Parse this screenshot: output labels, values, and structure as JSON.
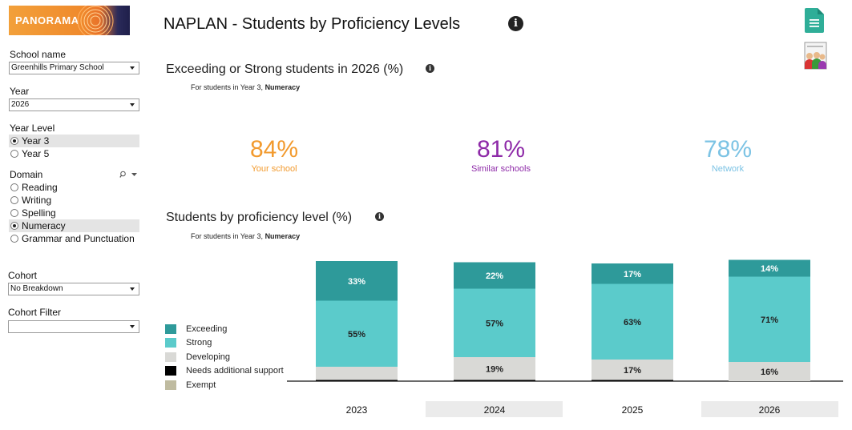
{
  "app": {
    "logo_text": "PANORAMA",
    "page_title": "NAPLAN - Students by Proficiency Levels"
  },
  "sidebar": {
    "school_label": "School name",
    "school_value": "Greenhills Primary School",
    "year_label": "Year",
    "year_value": "2026",
    "year_level_label": "Year Level",
    "year_levels": [
      {
        "label": "Year 3",
        "selected": true
      },
      {
        "label": "Year 5",
        "selected": false
      }
    ],
    "domain_label": "Domain",
    "domains": [
      {
        "label": "Reading",
        "selected": false
      },
      {
        "label": "Writing",
        "selected": false
      },
      {
        "label": "Spelling",
        "selected": false
      },
      {
        "label": "Numeracy",
        "selected": true
      },
      {
        "label": "Grammar and Punctuation",
        "selected": false
      }
    ],
    "cohort_label": "Cohort",
    "cohort_value": "No Breakdown",
    "cohort_filter_label": "Cohort Filter",
    "cohort_filter_value": ""
  },
  "kpi_section": {
    "title": "Exceeding or Strong students in 2026 (%)",
    "note_prefix": "For students in Year 3, ",
    "note_bold": "Numeracy",
    "items": [
      {
        "value": "84%",
        "label": "Your school",
        "color": "#f29a2e"
      },
      {
        "value": "81%",
        "label": "Similar schools",
        "color": "#8e2aa8"
      },
      {
        "value": "78%",
        "label": "Network",
        "color": "#7cc3e4"
      }
    ]
  },
  "chart_section": {
    "title": "Students by proficiency level (%)",
    "note_prefix": "For students in Year 3, ",
    "note_bold": "Numeracy"
  },
  "chart_data": {
    "type": "bar",
    "stacked": true,
    "categories": [
      "2023",
      "2024",
      "2025",
      "2026"
    ],
    "series": [
      {
        "name": "Exempt",
        "color": "#bfbba0",
        "values": [
          0,
          0,
          0,
          0
        ]
      },
      {
        "name": "Needs additional support",
        "color": "#000000",
        "values": [
          1,
          1,
          1,
          0
        ]
      },
      {
        "name": "Developing",
        "color": "#d9d9d6",
        "values": [
          11,
          19,
          17,
          16
        ]
      },
      {
        "name": "Strong",
        "color": "#5bcbcb",
        "values": [
          55,
          57,
          63,
          71
        ]
      },
      {
        "name": "Exceeding",
        "color": "#2e9a9a",
        "values": [
          33,
          22,
          17,
          14
        ]
      }
    ],
    "data_labels": {
      "Developing": [
        "",
        "19%",
        "17%",
        "16%"
      ],
      "Strong": [
        "55%",
        "57%",
        "63%",
        "71%"
      ],
      "Exceeding": [
        "33%",
        "22%",
        "17%",
        "14%"
      ]
    },
    "ylim": [
      0,
      100
    ],
    "legend": [
      {
        "name": "Exceeding",
        "color": "#2e9a9a"
      },
      {
        "name": "Strong",
        "color": "#5bcbcb"
      },
      {
        "name": "Developing",
        "color": "#d9d9d6"
      },
      {
        "name": "Needs additional support",
        "color": "#000000"
      },
      {
        "name": "Exempt",
        "color": "#bfbba0"
      }
    ],
    "legend_position": "left",
    "highlighted_categories": [
      "2024",
      "2026"
    ]
  }
}
